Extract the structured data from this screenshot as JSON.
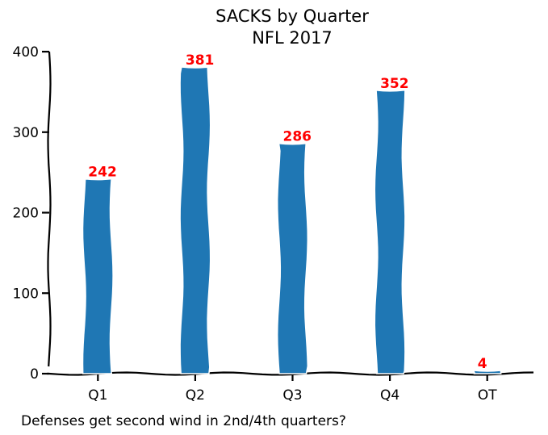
{
  "chart_data": {
    "type": "bar",
    "title": "SACKS by Quarter",
    "subtitle": "NFL 2017",
    "categories": [
      "Q1",
      "Q2",
      "Q3",
      "Q4",
      "OT"
    ],
    "values": [
      242,
      381,
      286,
      352,
      4
    ],
    "ylim": [
      0,
      400
    ],
    "yticks": [
      0,
      100,
      200,
      300,
      400
    ],
    "xlabel": "",
    "ylabel": "",
    "grid": false,
    "bar_color": "#1f77b4",
    "label_color": "#ff0000",
    "annotation": "Defenses get second wind in 2nd/4th quarters?"
  }
}
